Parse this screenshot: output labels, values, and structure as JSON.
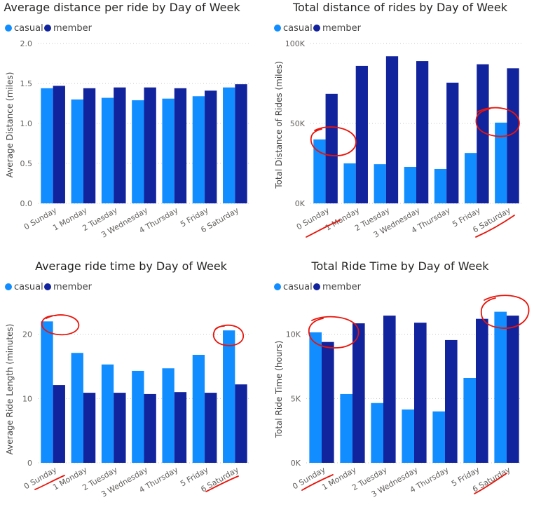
{
  "colors": {
    "casual": "#118dff",
    "member": "#12239e"
  },
  "chart_data": [
    {
      "type": "bar",
      "title": "Average distance per ride by Day of Week",
      "ylabel": "Average Distance (miles)",
      "xlabel": "",
      "categories": [
        "0 Sunday",
        "1 Monday",
        "2 Tuesday",
        "3 Wednesday",
        "4 Thursday",
        "5 Friday",
        "6 Saturday"
      ],
      "series": [
        {
          "name": "casual",
          "values": [
            1.44,
            1.3,
            1.32,
            1.29,
            1.31,
            1.34,
            1.45
          ]
        },
        {
          "name": "member",
          "values": [
            1.47,
            1.44,
            1.45,
            1.45,
            1.44,
            1.41,
            1.49
          ]
        }
      ],
      "ylim": [
        0,
        2.0
      ],
      "yticks": [
        0,
        0.5,
        1.0,
        1.5,
        2.0
      ],
      "ytick_labels": [
        "0.0",
        "0.5",
        "1.0",
        "1.5",
        "2.0"
      ],
      "legend": "top-left",
      "grid": true,
      "annotations": []
    },
    {
      "type": "bar",
      "title": "Total distance of rides by Day of Week",
      "ylabel": "Total Distance of Rides (miles)",
      "xlabel": "",
      "categories": [
        "0 Sunday",
        "1 Monday",
        "2 Tuesday",
        "3 Wednesday",
        "4 Thursday",
        "5 Friday",
        "6 Saturday"
      ],
      "series": [
        {
          "name": "casual",
          "values": [
            40000,
            25000,
            24500,
            22800,
            21500,
            31500,
            50500
          ]
        },
        {
          "name": "member",
          "values": [
            68500,
            86000,
            92000,
            89000,
            75500,
            87000,
            84500
          ]
        }
      ],
      "ylim": [
        0,
        100000
      ],
      "yticks": [
        0,
        50000,
        100000
      ],
      "ytick_labels": [
        "0K",
        "50K",
        "100K"
      ],
      "legend": "top-left",
      "grid": true,
      "annotations": [
        "circle around Sunday bars",
        "circle around Saturday bars",
        "underline Sunday label",
        "underline Saturday label"
      ]
    },
    {
      "type": "bar",
      "title": "Average ride time by Day of Week",
      "ylabel": "Average Ride Length (minutes)",
      "xlabel": "",
      "categories": [
        "0 Sunday",
        "1 Monday",
        "2 Tuesday",
        "3 Wednesday",
        "4 Thursday",
        "5 Friday",
        "6 Saturday"
      ],
      "series": [
        {
          "name": "casual",
          "values": [
            22.0,
            17.1,
            15.3,
            14.3,
            14.7,
            16.8,
            20.6
          ]
        },
        {
          "name": "member",
          "values": [
            12.1,
            10.9,
            10.9,
            10.7,
            11.0,
            10.9,
            12.2
          ]
        }
      ],
      "ylim": [
        0,
        24
      ],
      "yticks": [
        0,
        10,
        20
      ],
      "ytick_labels": [
        "0",
        "10",
        "20"
      ],
      "legend": "top-left",
      "grid": true,
      "annotations": [
        "circle around Sunday bar top",
        "circle around Saturday bar top",
        "underline Sunday label",
        "underline Saturday label"
      ]
    },
    {
      "type": "bar",
      "title": "Total Ride Time by Day of Week",
      "ylabel": "Total Ride Time (hours)",
      "xlabel": "",
      "categories": [
        "0 Sunday",
        "1 Monday",
        "2 Tuesday",
        "3 Wednesday",
        "4 Thursday",
        "5 Friday",
        "6 Saturday"
      ],
      "series": [
        {
          "name": "casual",
          "values": [
            10150,
            5350,
            4650,
            4150,
            4000,
            6600,
            11750
          ]
        },
        {
          "name": "member",
          "values": [
            9400,
            10850,
            11450,
            10900,
            9550,
            11200,
            11450
          ]
        }
      ],
      "ylim": [
        0,
        12000
      ],
      "yticks": [
        0,
        5000,
        10000
      ],
      "ytick_labels": [
        "0K",
        "5K",
        "10K"
      ],
      "legend": "top-left",
      "grid": true,
      "annotations": [
        "circle around Sunday bars",
        "circle around Saturday bars",
        "underline Sunday label",
        "underline Saturday label"
      ]
    }
  ]
}
